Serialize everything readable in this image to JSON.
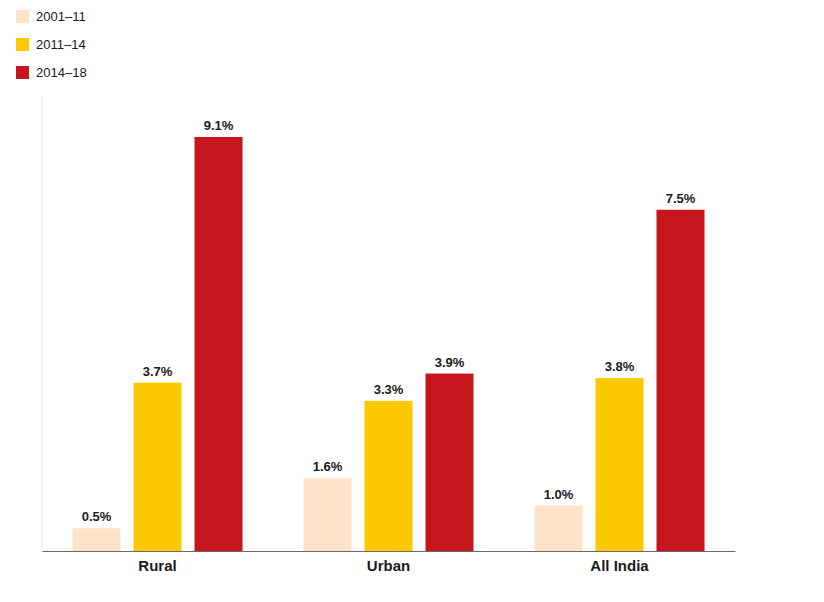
{
  "chart_data": {
    "type": "bar",
    "categories": [
      "Rural",
      "Urban",
      "All India"
    ],
    "series": [
      {
        "name": "2001–11",
        "color": "#fde3c8",
        "values": [
          0.5,
          1.6,
          1.0
        ],
        "value_labels": [
          "0.5%",
          "1.6%",
          "1.0%"
        ]
      },
      {
        "name": "2011–14",
        "color": "#fcc800",
        "values": [
          3.7,
          3.3,
          3.8
        ],
        "value_labels": [
          "3.7%",
          "3.3%",
          "3.8%"
        ]
      },
      {
        "name": "2014–18",
        "color": "#c4161c",
        "values": [
          9.1,
          3.9,
          7.5
        ],
        "value_labels": [
          "9.1%",
          "3.9%",
          "7.5%"
        ]
      }
    ],
    "ylim": [
      0,
      10
    ],
    "legend": "top-left",
    "data_labels": true,
    "tick_labels": "x"
  }
}
